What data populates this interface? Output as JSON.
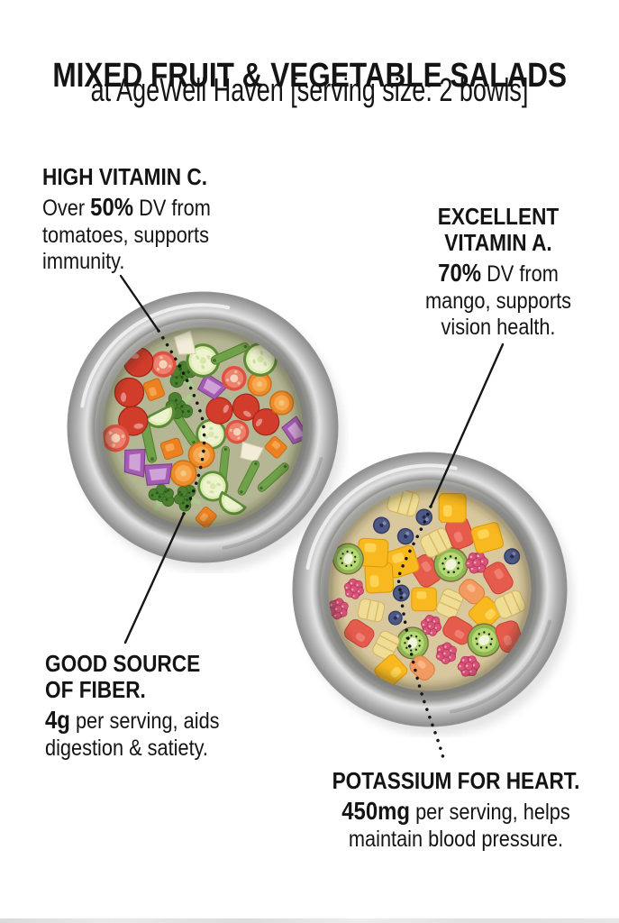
{
  "colors": {
    "text": "#141414",
    "background": "#ffffff",
    "callout_line": "#161616",
    "bowl_steel": "#c6c6c6"
  },
  "header": {
    "title": "MIXED FRUIT & VEGETABLE SALADS",
    "subtitle": "at AgeWell Haven [serving size: 2 bowls]"
  },
  "annotations": {
    "vitamin_c": {
      "heading": "HIGH VITAMIN C.",
      "line1_pre": "Over ",
      "line1_value": "50%",
      "line1_post": " DV from",
      "line2": "tomatoes, supports",
      "line3": "immunity."
    },
    "vitamin_a": {
      "heading_line1": "EXCELLENT",
      "heading_line2": "VITAMIN A.",
      "line1_value": "70%",
      "line1_post": " DV from",
      "line2": "mango, supports",
      "line3": "vision health."
    },
    "fiber": {
      "heading_line1": "GOOD SOURCE",
      "heading_line2": "OF FIBER.",
      "line1_value": "4g",
      "line1_post": " per serving, aids",
      "line2": "digestion & satiety."
    },
    "potassium": {
      "heading": "POTASSIUM FOR HEART.",
      "line1_value": "450mg",
      "line1_post": " per serving, helps",
      "line2": "maintain blood pressure."
    }
  },
  "bowls": {
    "vegetable_salad": {
      "label": "vegetable salad bowl",
      "ingredients": [
        "cherry tomatoes",
        "cucumber slices",
        "carrot",
        "green beans",
        "broccoli",
        "red onion",
        "white onion"
      ],
      "palette": {
        "tomato": "#d23c2a",
        "cucumber": "#dcebb0",
        "carrot": "#ee8b2b",
        "green_bean": "#6fa14a",
        "broccoli": "#4a8030",
        "red_onion": "#a35cb1",
        "base": "#b5b794"
      }
    },
    "fruit_salad": {
      "label": "fruit salad bowl",
      "ingredients": [
        "mango",
        "watermelon",
        "pineapple",
        "kiwi",
        "raspberries",
        "blueberries",
        "papaya"
      ],
      "palette": {
        "mango": "#f8b81f",
        "watermelon": "#e55c4d",
        "pineapple": "#efdc95",
        "kiwi": "#8fb950",
        "raspberry": "#d95379",
        "blueberry": "#4d5885",
        "papaya": "#f29a60",
        "base": "#d9c89d"
      }
    }
  }
}
